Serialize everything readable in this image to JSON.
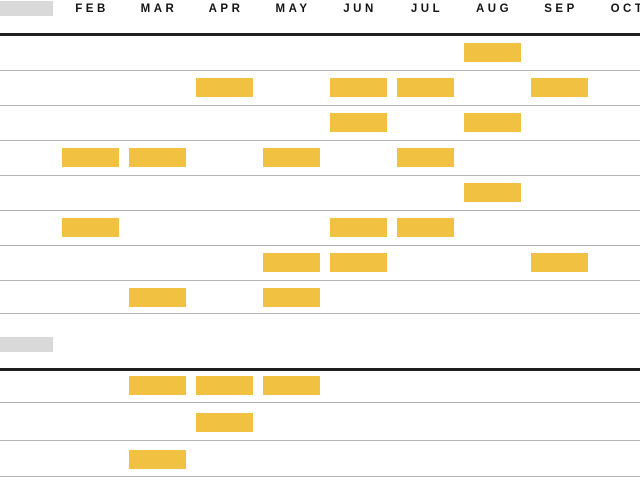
{
  "chart_data": {
    "type": "gantt",
    "title": "",
    "months": [
      "FEB",
      "MAR",
      "APR",
      "MAY",
      "JUN",
      "JUL",
      "AUG",
      "SEP",
      "OCT"
    ],
    "axis_position": "top",
    "grid": "horizontal-row-lines",
    "bar_unit": "one-month",
    "legend": "none",
    "sections": [
      {
        "label": "",
        "label_redacted_placeholder": true,
        "rows": [
          {
            "bars": [
              "AUG"
            ]
          },
          {
            "bars": [
              "APR",
              "JUN",
              "JUL",
              "SEP"
            ]
          },
          {
            "bars": [
              "JUN",
              "AUG"
            ]
          },
          {
            "bars": [
              "FEB",
              "MAR",
              "MAY",
              "JUL"
            ]
          },
          {
            "bars": [
              "AUG"
            ]
          },
          {
            "bars": [
              "FEB",
              "JUN",
              "JUL"
            ]
          },
          {
            "bars": [
              "MAY",
              "JUN",
              "SEP"
            ]
          },
          {
            "bars": [
              "MAR",
              "MAY"
            ]
          }
        ]
      },
      {
        "label": "",
        "label_redacted_placeholder": true,
        "rows": [
          {
            "bars": [
              "MAR",
              "APR",
              "MAY"
            ]
          },
          {
            "bars": [
              "APR"
            ]
          },
          {
            "bars": [
              "MAR"
            ]
          }
        ]
      }
    ]
  },
  "colors": {
    "bar": "#F1C242",
    "thin_line": "#b3b3b3",
    "thick_line": "#1f1f1f",
    "placeholder": "#d9d9d9",
    "background": "#ffffff",
    "text": "#141414"
  }
}
